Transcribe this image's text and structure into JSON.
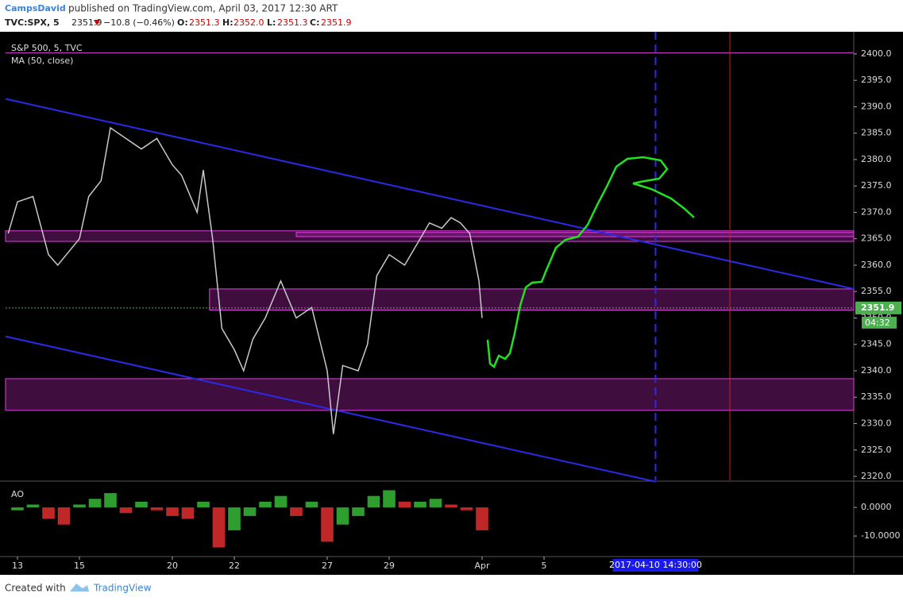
{
  "header": {
    "author": "CampsDavid",
    "published": "published on TradingView.com, April 03, 2017 12:30 ART",
    "symbol": "TVC:SPX, 5",
    "last": "2351.9",
    "change": "−10.8 (−0.46%)",
    "o_label": "O:",
    "o": "2351.3",
    "h_label": "H:",
    "h": "2352.0",
    "l_label": "L:",
    "l": "2351.3",
    "c_label": "C:",
    "c": "2351.9"
  },
  "chart_data": {
    "type": "line",
    "title": "S&P 500, 5, TVC",
    "indicator": "MA (50, close)",
    "color": "#c9c9c9",
    "x": [
      -0.3,
      0,
      0.5,
      1,
      1.3,
      2,
      2.3,
      2.7,
      3,
      3.5,
      4,
      4.5,
      5,
      5.3,
      5.8,
      6,
      6.3,
      6.6,
      7,
      7.3,
      7.6,
      8,
      8.5,
      9,
      9.5,
      10,
      10.2,
      10.5,
      11,
      11.3,
      11.6,
      12,
      12.5,
      13,
      13.3,
      13.7,
      14,
      14.3,
      14.6,
      14.9,
      15
    ],
    "values": [
      2366,
      2372,
      2373,
      2362,
      2360,
      2365,
      2373,
      2376,
      2386,
      2384,
      2382,
      2384,
      2379,
      2377,
      2370,
      2378,
      2365,
      2348,
      2344,
      2340,
      2346,
      2350,
      2357,
      2350,
      2352,
      2340,
      2328,
      2341,
      2340,
      2345,
      2358,
      2362,
      2360,
      2365,
      2368,
      2367,
      2369,
      2368,
      2366,
      2357,
      2350
    ],
    "xlim": [
      -0.385,
      27.0
    ],
    "xticks": [
      {
        "value": 0,
        "label": "13"
      },
      {
        "value": 2,
        "label": "15"
      },
      {
        "value": 5,
        "label": "20"
      },
      {
        "value": 7,
        "label": "22"
      },
      {
        "value": 10,
        "label": "27"
      },
      {
        "value": 12,
        "label": "29"
      },
      {
        "value": 15,
        "label": "Apr"
      },
      {
        "value": 17,
        "label": "5"
      }
    ],
    "ylim": [
      2319.25,
      2403.9
    ],
    "yticks": [
      {
        "value": 2320,
        "label": "2320.0"
      },
      {
        "value": 2325,
        "label": "2325.0"
      },
      {
        "value": 2330,
        "label": "2330.0"
      },
      {
        "value": 2335,
        "label": "2335.0"
      },
      {
        "value": 2340,
        "label": "2340.0"
      },
      {
        "value": 2345,
        "label": "2345.0"
      },
      {
        "value": 2350,
        "label": "2350.0"
      },
      {
        "value": 2355,
        "label": "2355.0"
      },
      {
        "value": 2360,
        "label": "2360.0"
      },
      {
        "value": 2365,
        "label": "2365.0"
      },
      {
        "value": 2370,
        "label": "2370.0"
      },
      {
        "value": 2375,
        "label": "2375.0"
      },
      {
        "value": 2380,
        "label": "2380.0"
      },
      {
        "value": 2385,
        "label": "2385.0"
      },
      {
        "value": 2390,
        "label": "2390.0"
      },
      {
        "value": 2395,
        "label": "2395.0"
      },
      {
        "value": 2400,
        "label": "2400.0"
      }
    ],
    "last_price": 2351.9,
    "timer": "04:32",
    "zones": [
      {
        "x": [
          -0.385,
          27.0
        ],
        "y": [
          2364.5,
          2366.5
        ]
      },
      {
        "x": [
          9.0,
          27.0
        ],
        "y": [
          2365.4,
          2366.2
        ]
      },
      {
        "x": [
          6.2,
          27.0
        ],
        "y": [
          2351.5,
          2355.5
        ]
      },
      {
        "x": [
          -0.385,
          27.0
        ],
        "y": [
          2332.5,
          2338.5
        ]
      }
    ],
    "hlines": [
      2400.2
    ],
    "trendlines": [
      {
        "x": [
          -0.385,
          27.0
        ],
        "y": [
          2391.5,
          2355.5
        ]
      },
      {
        "x": [
          -0.385,
          20.6
        ],
        "y": [
          2346.5,
          2319.0
        ]
      }
    ],
    "vline_x": 23.0,
    "cursor_x": 20.6,
    "cursor_label": "2017-04-10 14:30:00",
    "ao": {
      "title": "AO",
      "x": [
        0,
        0.5,
        1,
        1.5,
        2,
        2.5,
        3,
        3.5,
        4,
        4.5,
        5,
        5.5,
        6,
        6.5,
        7,
        7.5,
        8,
        8.5,
        9,
        9.5,
        10,
        10.5,
        11,
        11.5,
        12,
        12.5,
        13,
        13.5,
        14,
        14.5,
        15
      ],
      "values": [
        -1,
        1,
        -4,
        -6,
        1,
        3,
        5,
        -2,
        2,
        -1,
        -3,
        -4,
        2,
        -14,
        -8,
        -3,
        2,
        4,
        -3,
        2,
        -12,
        -6,
        -3,
        4,
        6,
        2,
        2,
        3,
        1,
        -1,
        -8
      ],
      "ylim": [
        -16.9,
        8.9
      ],
      "yticks": [
        {
          "value": 0,
          "label": "0.0000"
        },
        {
          "value": -10,
          "label": "-10.0000"
        }
      ]
    }
  },
  "footer": {
    "created": "Created with",
    "brand": "TradingView"
  }
}
